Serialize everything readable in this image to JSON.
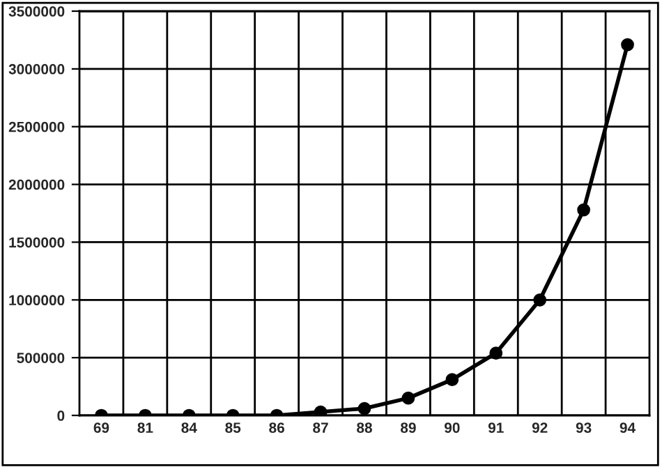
{
  "chart_data": {
    "type": "line",
    "categories": [
      "69",
      "81",
      "84",
      "85",
      "86",
      "87",
      "88",
      "89",
      "90",
      "91",
      "92",
      "93",
      "94"
    ],
    "series": [
      {
        "color": "#000000",
        "values": [
          0,
          0,
          0,
          0,
          0,
          30000,
          60000,
          150000,
          310000,
          540000,
          1000000,
          1780000,
          3210000
        ]
      }
    ],
    "ylim": [
      0,
      3500000
    ],
    "yticks": [
      0,
      500000,
      1000000,
      1500000,
      2000000,
      2500000,
      3000000,
      3500000
    ],
    "grid": true,
    "marker": "circle",
    "line_style": "solid"
  }
}
